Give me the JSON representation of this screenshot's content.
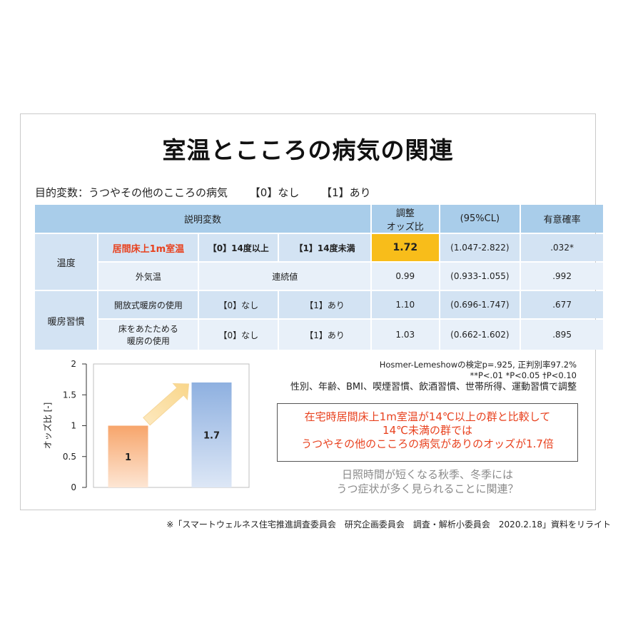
{
  "title": "室温とこころの病気の関連",
  "subtitle": {
    "label": "目的変数：うつやその他のこころの病気",
    "opt0": "【0】なし",
    "opt1": "【1】あり"
  },
  "table": {
    "headers": {
      "vars": "説明変数",
      "or_line1": "調整",
      "or_line2": "オッズ比",
      "ci": "(95%CL)",
      "p": "有意確率"
    },
    "groups": {
      "temp": "温度",
      "heat": "暖房習慣"
    },
    "rows": [
      {
        "var": "居間床上1m室温",
        "c0": "【0】14度以上",
        "c1": "【1】14度未満",
        "or": "1.72",
        "ci": "(1.047-2.822)",
        "p": ".032*"
      },
      {
        "var": "外気温",
        "c01": "連続値",
        "or": "0.99",
        "ci": "(0.933-1.055)",
        "p": ".992"
      },
      {
        "var": "開放式暖房の使用",
        "c0": "【0】なし",
        "c1": "【1】あり",
        "or": "1.10",
        "ci": "(0.696-1.747)",
        "p": ".677"
      },
      {
        "var_line1": "床をあたためる",
        "var_line2": "暖房の使用",
        "c0": "【0】なし",
        "c1": "【1】あり",
        "or": "1.03",
        "ci": "(0.662-1.602)",
        "p": ".895"
      }
    ]
  },
  "notes": {
    "line1": "Hosmer-Lemeshowの検定p=.925, 正判別率97.2%",
    "line2": "**P<.01 *P<0.05 †P<0.10",
    "line3": "性別、年齢、BMI、喫煙習慣、飲酒習慣、世帯所得、運動習慣で調整"
  },
  "highlight_box": {
    "line1": "在宅時居間床上1m室温が14℃以上の群と比較して",
    "line2": "14℃未満の群では",
    "line3": "うつやその他のこころの病気がありのオッズが1.7倍"
  },
  "gray_note": {
    "line1": "日照時間が短くなる秋季、冬季には",
    "line2": "うつ症状が多く見られることに関連？"
  },
  "footer": "※「スマートウェルネス住宅推進調査委員会　研究企画委員会　調査・解析小委員会　2020.2.18」資料をリライト",
  "chart_data": {
    "type": "bar",
    "categories": [
      "",
      ""
    ],
    "values": [
      1,
      1.7
    ],
    "data_labels": [
      "1",
      "1.7"
    ],
    "ylabel": "オッズ比 [-]",
    "ylim": [
      0,
      2
    ],
    "yticks": [
      "0",
      "0.5",
      "1",
      "1.5",
      "2"
    ],
    "colors": [
      "#f7a56b",
      "#8eb0e0"
    ]
  }
}
